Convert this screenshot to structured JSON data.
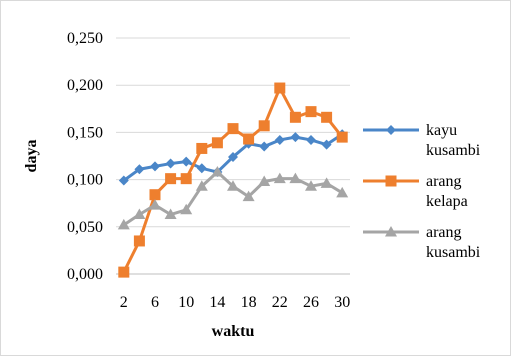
{
  "chart_data": {
    "type": "line",
    "title": "",
    "xlabel": "waktu",
    "ylabel": "daya",
    "ylim": [
      0,
      0.25
    ],
    "y_ticks": [
      "0,000",
      "0,050",
      "0,100",
      "0,150",
      "0,200",
      "0,250"
    ],
    "y_tick_values": [
      0,
      0.05,
      0.1,
      0.15,
      0.2,
      0.25
    ],
    "x": [
      2,
      4,
      6,
      8,
      10,
      12,
      14,
      16,
      18,
      20,
      22,
      24,
      26,
      28,
      30
    ],
    "x_tick_labels": [
      "2",
      "6",
      "10",
      "14",
      "18",
      "22",
      "26",
      "30"
    ],
    "x_tick_values": [
      2,
      6,
      10,
      14,
      18,
      22,
      26,
      30
    ],
    "grid": "horizontal",
    "legend_position": "right",
    "series": [
      {
        "name_lines": [
          "kayu",
          "kusambi"
        ],
        "color": "#4a86c8",
        "marker": "diamond",
        "values": [
          0.099,
          0.111,
          0.114,
          0.117,
          0.119,
          0.112,
          0.108,
          0.124,
          0.138,
          0.135,
          0.142,
          0.145,
          0.142,
          0.137,
          0.148
        ]
      },
      {
        "name_lines": [
          "arang",
          "kelapa"
        ],
        "color": "#ee7f2e",
        "marker": "square",
        "values": [
          0.002,
          0.035,
          0.084,
          0.101,
          0.101,
          0.133,
          0.139,
          0.154,
          0.143,
          0.157,
          0.197,
          0.166,
          0.172,
          0.166,
          0.145
        ]
      },
      {
        "name_lines": [
          "arang",
          "kusambi"
        ],
        "color": "#a5a5a5",
        "marker": "triangle",
        "values": [
          0.052,
          0.063,
          0.073,
          0.063,
          0.068,
          0.093,
          0.108,
          0.093,
          0.082,
          0.098,
          0.101,
          0.101,
          0.093,
          0.096,
          0.086
        ]
      }
    ]
  }
}
